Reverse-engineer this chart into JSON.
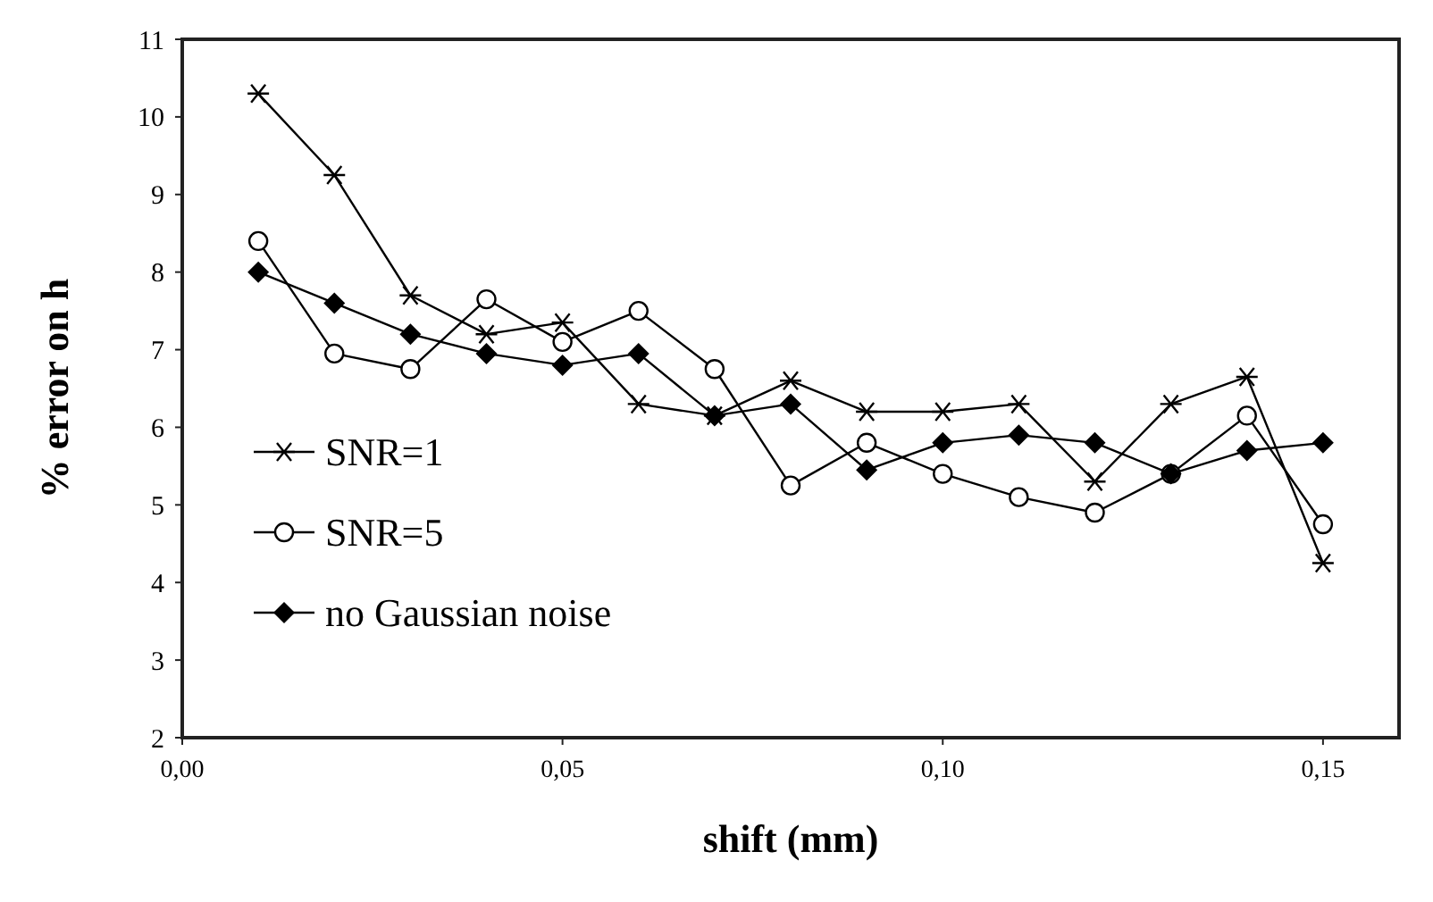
{
  "chart_data": {
    "type": "line",
    "xlabel": "shift (mm)",
    "ylabel": "% error on h",
    "x": [
      0.01,
      0.02,
      0.03,
      0.04,
      0.05,
      0.06,
      0.07,
      0.08,
      0.09,
      0.1,
      0.11,
      0.12,
      0.13,
      0.14,
      0.15
    ],
    "series": [
      {
        "name": "SNR=1",
        "color": "#000000",
        "marker": "cross",
        "values": [
          10.3,
          9.25,
          7.7,
          7.2,
          7.35,
          6.3,
          6.15,
          6.6,
          6.2,
          6.2,
          6.3,
          5.3,
          6.3,
          6.65,
          4.25
        ]
      },
      {
        "name": "SNR=5",
        "color": "#000000",
        "marker": "circle",
        "values": [
          8.4,
          6.95,
          6.75,
          7.65,
          7.1,
          7.5,
          6.75,
          5.25,
          5.8,
          5.4,
          5.1,
          4.9,
          5.4,
          6.15,
          4.75
        ]
      },
      {
        "name": "no Gaussian noise",
        "color": "#000000",
        "marker": "diamond",
        "values": [
          8.0,
          7.6,
          7.2,
          6.95,
          6.8,
          6.95,
          6.15,
          6.3,
          5.45,
          5.8,
          5.9,
          5.8,
          5.4,
          5.7,
          5.8
        ]
      }
    ],
    "xlim": [
      0,
      0.16
    ],
    "xticks": [
      {
        "value": 0,
        "label": "0,00"
      },
      {
        "value": 0.05,
        "label": "0,05"
      },
      {
        "value": 0.1,
        "label": "0,10"
      },
      {
        "value": 0.15,
        "label": "0,15"
      }
    ],
    "ylim": [
      2,
      11
    ],
    "yticks": [
      2,
      3,
      4,
      5,
      6,
      7,
      8,
      9,
      10,
      11
    ],
    "grid": false,
    "legend": "bottom left",
    "line_style": "solid"
  }
}
